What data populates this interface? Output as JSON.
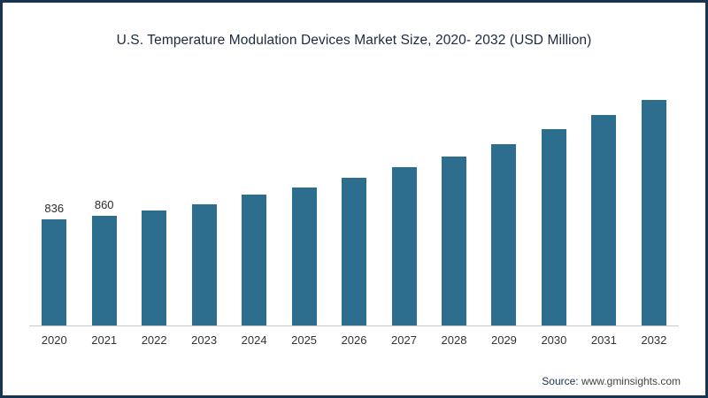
{
  "title": "U.S. Temperature Modulation Devices Market Size, 2020- 2032 (USD Million)",
  "source": {
    "label": "Source:",
    "text": "www.gminsights.com"
  },
  "chart_data": {
    "type": "bar",
    "title": "U.S. Temperature Modulation Devices Market Size, 2020- 2032 (USD Million)",
    "categories": [
      "2020",
      "2021",
      "2022",
      "2023",
      "2024",
      "2025",
      "2026",
      "2027",
      "2028",
      "2029",
      "2030",
      "2031",
      "2032"
    ],
    "values": [
      836,
      860,
      905,
      955,
      1025,
      1085,
      1160,
      1245,
      1330,
      1425,
      1540,
      1655,
      1775
    ],
    "data_labels": [
      "836",
      "860",
      "",
      "",
      "",
      "",
      "",
      "",
      "",
      "",
      "",
      "",
      ""
    ],
    "xlabel": "",
    "ylabel": "",
    "ylim": [
      0,
      2050
    ],
    "grid": false,
    "legend": "none",
    "bar_color": "#2d6d8e",
    "axis_line_color": "#c9c9c9",
    "note": "Only 2020 and 2021 bars carry visible data labels; other values estimated from bar heights"
  }
}
